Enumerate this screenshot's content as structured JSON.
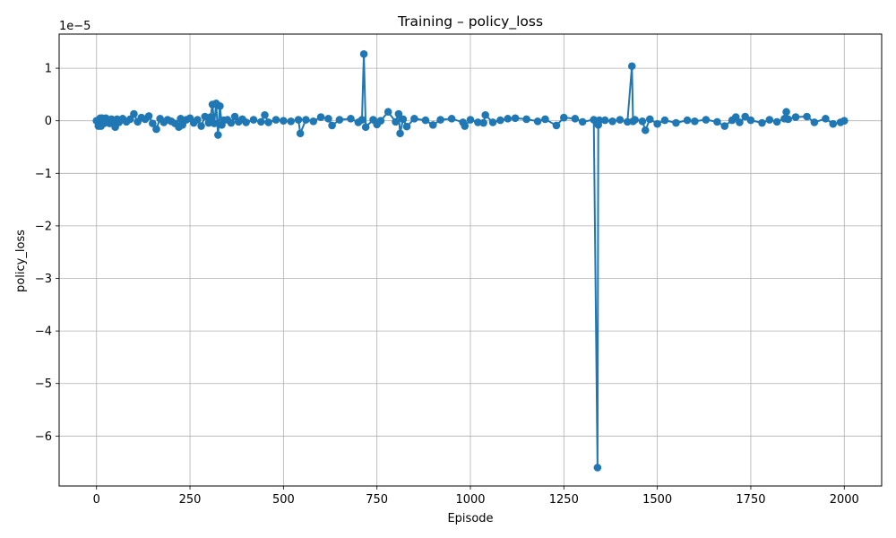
{
  "chart_data": {
    "type": "line",
    "title": "Training – policy_loss",
    "xlabel": "Episode",
    "ylabel": "policy_loss",
    "y_scale_label": "1e−5",
    "y_multiplier": 1e-05,
    "xlim": [
      -100,
      2100
    ],
    "ylim": [
      -6.95,
      1.65
    ],
    "xticks": [
      0,
      250,
      500,
      750,
      1000,
      1250,
      1500,
      1750,
      2000
    ],
    "xtick_labels": [
      "0",
      "250",
      "500",
      "750",
      "1000",
      "1250",
      "1500",
      "1750",
      "2000"
    ],
    "yticks": [
      -6,
      -5,
      -4,
      -3,
      -2,
      -1,
      0,
      1
    ],
    "ytick_labels": [
      "−6",
      "−5",
      "−4",
      "−3",
      "−2",
      "−1",
      "0",
      "1"
    ],
    "grid": true,
    "color": "#1f77b4",
    "marker": "circle",
    "series": [
      {
        "x": [
          0,
          5,
          10,
          12,
          15,
          20,
          25,
          30,
          35,
          40,
          45,
          50,
          55,
          60,
          70,
          80,
          90,
          100,
          110,
          120,
          130,
          140,
          150,
          160,
          170,
          180,
          190,
          200,
          210,
          220,
          225,
          230,
          240,
          250,
          260,
          270,
          280,
          290,
          300,
          305,
          310,
          315,
          320,
          325,
          330,
          335,
          340,
          350,
          360,
          370,
          380,
          390,
          400,
          420,
          440,
          450,
          460,
          480,
          500,
          520,
          540,
          545,
          560,
          580,
          600,
          620,
          630,
          650,
          680,
          700,
          710,
          715,
          720,
          740,
          750,
          760,
          780,
          800,
          808,
          812,
          820,
          830,
          850,
          880,
          900,
          920,
          950,
          980,
          985,
          1000,
          1020,
          1035,
          1040,
          1060,
          1080,
          1100,
          1120,
          1150,
          1180,
          1200,
          1230,
          1250,
          1280,
          1300,
          1330,
          1340,
          1342,
          1345,
          1360,
          1380,
          1400,
          1420,
          1432,
          1435,
          1440,
          1460,
          1468,
          1480,
          1500,
          1520,
          1550,
          1580,
          1600,
          1630,
          1660,
          1680,
          1700,
          1710,
          1720,
          1735,
          1750,
          1780,
          1800,
          1820,
          1840,
          1845,
          1850,
          1870,
          1900,
          1920,
          1950,
          1970,
          1990,
          2000
        ],
        "y": [
          0,
          -0.1,
          0.05,
          -0.1,
          0.05,
          -0.05,
          0.05,
          0,
          -0.05,
          0.03,
          -0.05,
          -0.12,
          0.03,
          -0.03,
          0.04,
          -0.02,
          0.03,
          0.13,
          -0.02,
          0.06,
          0.03,
          0.09,
          -0.05,
          -0.16,
          0.04,
          -0.03,
          0.02,
          -0.01,
          -0.05,
          -0.12,
          0.04,
          -0.08,
          0.02,
          0.05,
          -0.04,
          0.02,
          -0.1,
          0.08,
          -0.04,
          0.07,
          0.31,
          -0.05,
          0.33,
          -0.27,
          0.28,
          -0.08,
          0.01,
          0.02,
          -0.04,
          0.08,
          -0.02,
          0.03,
          -0.03,
          0.02,
          -0.02,
          0.11,
          -0.03,
          0.02,
          0,
          -0.01,
          0.02,
          -0.24,
          0.02,
          -0.01,
          0.07,
          0.04,
          -0.09,
          0.02,
          0.04,
          -0.03,
          0.02,
          1.27,
          -0.12,
          0.02,
          -0.07,
          0,
          0.17,
          -0.02,
          0.13,
          -0.24,
          0.03,
          -0.11,
          0.04,
          0.01,
          -0.08,
          0.02,
          0.04,
          -0.03,
          -0.1,
          0.02,
          -0.03,
          -0.04,
          0.11,
          -0.03,
          0.01,
          0.04,
          0.05,
          0.03,
          -0.01,
          0.03,
          -0.09,
          0.06,
          0.04,
          -0.02,
          0.02,
          -6.6,
          -0.08,
          0.01,
          0.01,
          -0.01,
          0.02,
          -0.02,
          1.04,
          -0.01,
          0.02,
          -0.01,
          -0.18,
          0.03,
          -0.06,
          0.01,
          -0.04,
          0.01,
          -0.01,
          0.02,
          -0.02,
          -0.1,
          0.01,
          0.07,
          -0.03,
          0.08,
          0.01,
          -0.04,
          0.02,
          -0.02,
          0.04,
          0.17,
          0.03,
          0.07,
          0.08,
          -0.03,
          0.04,
          -0.06,
          -0.03,
          0
        ]
      }
    ]
  }
}
